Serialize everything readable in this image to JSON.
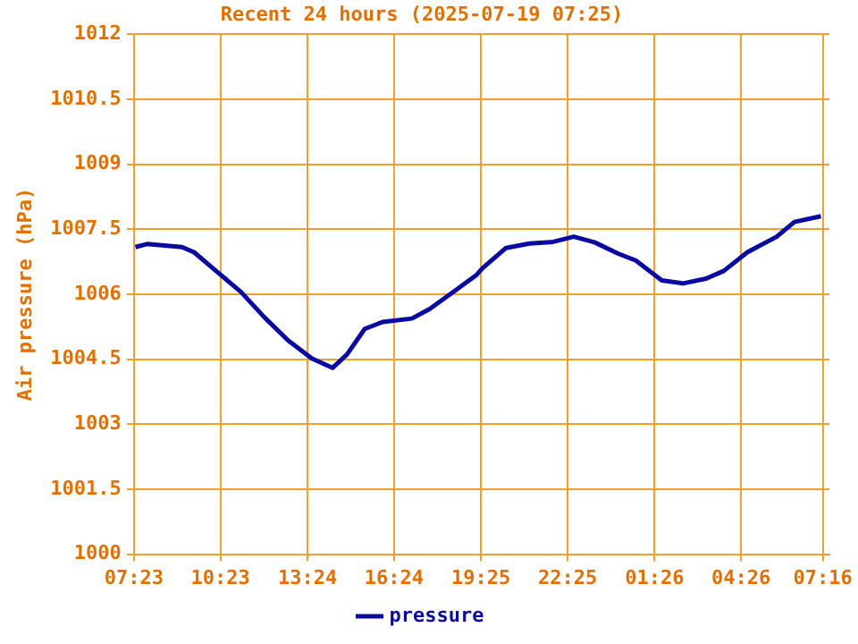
{
  "chart_data": {
    "type": "line",
    "title": "Recent 24 hours (2025-07-19 07:25)",
    "ylabel": "Air pressure (hPa)",
    "x": [
      "2025-07-18T07:26",
      "2025-07-18T07:50",
      "2025-07-18T09:03",
      "2025-07-18T09:28",
      "2025-07-18T10:17",
      "2025-07-18T11:06",
      "2025-07-18T11:55",
      "2025-07-18T12:44",
      "2025-07-18T13:33",
      "2025-07-18T14:16",
      "2025-07-18T14:46",
      "2025-07-18T15:23",
      "2025-07-18T16:00",
      "2025-07-18T17:01",
      "2025-07-18T17:38",
      "2025-07-18T18:27",
      "2025-07-18T19:16",
      "2025-07-18T19:28",
      "2025-07-18T20:17",
      "2025-07-18T21:06",
      "2025-07-18T21:55",
      "2025-07-18T22:38",
      "2025-07-18T23:21",
      "2025-07-19T00:10",
      "2025-07-19T00:47",
      "2025-07-19T01:41",
      "2025-07-19T02:25",
      "2025-07-19T03:13",
      "2025-07-19T03:50",
      "2025-07-19T04:39",
      "2025-07-19T05:40",
      "2025-07-19T06:17",
      "2025-07-19T07:12"
    ],
    "series": [
      {
        "name": "pressure",
        "color": "#0a0aa0",
        "values": [
          1007.09,
          1007.16,
          1007.09,
          1006.97,
          1006.51,
          1006.05,
          1005.46,
          1004.93,
          1004.52,
          1004.3,
          1004.61,
          1005.2,
          1005.36,
          1005.44,
          1005.66,
          1006.05,
          1006.45,
          1006.6,
          1007.07,
          1007.17,
          1007.21,
          1007.33,
          1007.2,
          1006.94,
          1006.78,
          1006.32,
          1006.25,
          1006.36,
          1006.54,
          1006.97,
          1007.33,
          1007.67,
          1007.8
        ]
      }
    ],
    "xlim": [
      "2025-07-18T07:23",
      "2025-07-19T07:30"
    ],
    "xticks": [
      {
        "value": "2025-07-18T07:23",
        "label": "07:23"
      },
      {
        "value": "2025-07-18T10:23",
        "label": "10:23"
      },
      {
        "value": "2025-07-18T13:24",
        "label": "13:24"
      },
      {
        "value": "2025-07-18T16:24",
        "label": "16:24"
      },
      {
        "value": "2025-07-18T19:25",
        "label": "19:25"
      },
      {
        "value": "2025-07-18T22:25",
        "label": "22:25"
      },
      {
        "value": "2025-07-19T01:26",
        "label": "01:26"
      },
      {
        "value": "2025-07-19T04:26",
        "label": "04:26"
      },
      {
        "value": "2025-07-19T07:16",
        "label": "07:16"
      }
    ],
    "ylim": [
      1000,
      1012
    ],
    "yticks": [
      1000,
      1001.5,
      1003,
      1004.5,
      1006,
      1007.5,
      1009,
      1010.5,
      1012
    ],
    "grid": true,
    "legend": "bottom",
    "marker": "none",
    "line_style": "solid"
  }
}
